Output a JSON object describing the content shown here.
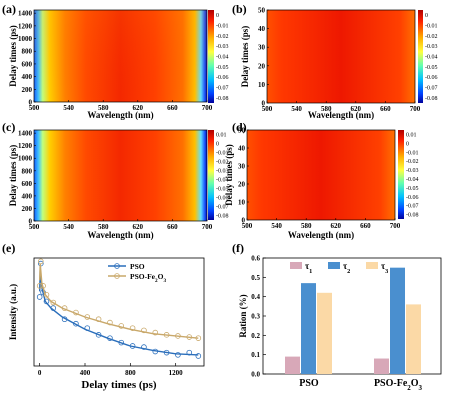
{
  "chart_data": [
    {
      "panel": "(a)",
      "type": "heatmap",
      "xlabel": "Wavelength (nm)",
      "ylabel": "Delay times (ps)",
      "xlim": [
        500,
        700
      ],
      "ylim": [
        0,
        1450
      ],
      "x_ticks": [
        "500",
        "540",
        "580",
        "620",
        "660",
        "700"
      ],
      "y_ticks": [
        "0",
        "200",
        "400",
        "600",
        "800",
        "1000",
        "1200",
        "1400"
      ],
      "colorbar_ticks": [
        "0",
        "-0.01",
        "-0.02",
        "-0.03",
        "-0.04",
        "-0.05",
        "-0.06",
        "-0.07",
        "-0.08"
      ],
      "colorbar_range": [
        -0.085,
        0.005
      ],
      "features": "bleach (blue) near 500 nm and 700 nm, positive (red) 540-690 nm"
    },
    {
      "panel": "(b)",
      "type": "heatmap",
      "xlabel": "Wavelength (nm)",
      "ylabel": "Delay times (ps)",
      "xlim": [
        500,
        700
      ],
      "ylim": [
        0,
        50
      ],
      "x_ticks": [
        "500",
        "540",
        "580",
        "620",
        "660",
        "700"
      ],
      "y_ticks": [
        "0",
        "10",
        "20",
        "30",
        "40",
        "50"
      ],
      "colorbar_ticks": [
        "0",
        "-0.01",
        "-0.02",
        "-0.03",
        "-0.04",
        "-0.05",
        "-0.06",
        "-0.07",
        "-0.08"
      ],
      "colorbar_range": [
        -0.085,
        0.005
      ]
    },
    {
      "panel": "(c)",
      "type": "heatmap",
      "xlabel": "Wavelength (nm)",
      "ylabel": "Delay times (ps)",
      "xlim": [
        500,
        700
      ],
      "ylim": [
        0,
        1450
      ],
      "x_ticks": [
        "500",
        "540",
        "580",
        "620",
        "660",
        "700"
      ],
      "y_ticks": [
        "0",
        "200",
        "400",
        "600",
        "800",
        "1000",
        "1200",
        "1400"
      ],
      "colorbar_ticks": [
        "0.01",
        "0",
        "-0.01",
        "-0.02",
        "-0.03",
        "-0.04",
        "-0.05",
        "-0.06",
        "-0.07",
        "-0.08"
      ],
      "colorbar_range": [
        -0.085,
        0.015
      ],
      "features": "bleach (blue) near 500 nm and 700 nm, positive (red) 540-690 nm"
    },
    {
      "panel": "(d)",
      "type": "heatmap",
      "xlabel": "Wavelength (nm)",
      "ylabel": "Delay times (ps)",
      "xlim": [
        500,
        700
      ],
      "ylim": [
        0,
        50
      ],
      "x_ticks": [
        "500",
        "540",
        "580",
        "620",
        "660",
        "700"
      ],
      "y_ticks": [
        "0",
        "10",
        "20",
        "30",
        "40",
        "50"
      ],
      "colorbar_ticks": [
        "0.01",
        "0",
        "-0.01",
        "-0.02",
        "-0.03",
        "-0.04",
        "-0.05",
        "-0.06",
        "-0.07",
        "-0.08"
      ],
      "colorbar_range": [
        -0.085,
        0.015
      ]
    },
    {
      "panel": "(e)",
      "type": "scatter",
      "xlabel": "Delay times (ps)",
      "ylabel": "Intensity (a.u.)",
      "xlim": [
        -50,
        1450
      ],
      "x_ticks": [
        "0",
        "400",
        "800",
        "1200"
      ],
      "series": [
        {
          "name": "PSO",
          "color": "#2a6ebb",
          "fit": [
            [
              0,
              0.75
            ],
            [
              5,
              0.95
            ],
            [
              20,
              0.78
            ],
            [
              50,
              0.66
            ],
            [
              100,
              0.6
            ],
            [
              200,
              0.52
            ],
            [
              400,
              0.41
            ],
            [
              600,
              0.33
            ],
            [
              800,
              0.26
            ],
            [
              1000,
              0.22
            ],
            [
              1200,
              0.19
            ],
            [
              1400,
              0.18
            ]
          ],
          "points": [
            [
              0,
              0.7
            ],
            [
              10,
              1.0
            ],
            [
              30,
              0.74
            ],
            [
              60,
              0.66
            ],
            [
              120,
              0.6
            ],
            [
              220,
              0.5
            ],
            [
              320,
              0.46
            ],
            [
              420,
              0.42
            ],
            [
              520,
              0.36
            ],
            [
              620,
              0.33
            ],
            [
              720,
              0.29
            ],
            [
              820,
              0.26
            ],
            [
              920,
              0.25
            ],
            [
              1020,
              0.21
            ],
            [
              1120,
              0.2
            ],
            [
              1220,
              0.18
            ],
            [
              1320,
              0.2
            ],
            [
              1400,
              0.17
            ]
          ]
        },
        {
          "name": "PSO-Fe2O3",
          "color": "#c9a86a",
          "fit": [
            [
              0,
              0.85
            ],
            [
              5,
              1.0
            ],
            [
              20,
              0.82
            ],
            [
              50,
              0.72
            ],
            [
              100,
              0.66
            ],
            [
              200,
              0.6
            ],
            [
              400,
              0.52
            ],
            [
              600,
              0.46
            ],
            [
              800,
              0.41
            ],
            [
              1000,
              0.37
            ],
            [
              1200,
              0.35
            ],
            [
              1400,
              0.33
            ]
          ],
          "points": [
            [
              0,
              0.8
            ],
            [
              10,
              1.02
            ],
            [
              30,
              0.8
            ],
            [
              60,
              0.72
            ],
            [
              120,
              0.65
            ],
            [
              220,
              0.6
            ],
            [
              320,
              0.56
            ],
            [
              420,
              0.52
            ],
            [
              520,
              0.5
            ],
            [
              620,
              0.47
            ],
            [
              720,
              0.44
            ],
            [
              820,
              0.42
            ],
            [
              920,
              0.4
            ],
            [
              1020,
              0.38
            ],
            [
              1120,
              0.36
            ],
            [
              1220,
              0.35
            ],
            [
              1320,
              0.34
            ],
            [
              1400,
              0.33
            ]
          ]
        }
      ],
      "legend": {
        "position": "top-right",
        "entries": [
          "PSO",
          "PSO-Fe"
        ]
      },
      "legend_subscript": "2",
      "legend_suffix": "O",
      "legend_suffix_subscript": "3"
    },
    {
      "panel": "(f)",
      "type": "bar",
      "xlabel": "",
      "ylabel": "Ration (%)",
      "ylim": [
        0.0,
        0.6
      ],
      "y_ticks": [
        "0.0",
        "0.1",
        "0.2",
        "0.3",
        "0.4",
        "0.5",
        "0.6"
      ],
      "categories": [
        "PSO",
        "PSO-Fe2O3"
      ],
      "category_label_parts": [
        {
          "base": "PSO",
          "sub": "",
          "tail": "",
          "tailsub": ""
        },
        {
          "base": "PSO-Fe",
          "sub": "2",
          "tail": "O",
          "tailsub": "3"
        }
      ],
      "series": [
        {
          "name": "τ1",
          "symbol": "τ",
          "sub": "1",
          "color": "#d8a8b8",
          "values": [
            0.09,
            0.08
          ]
        },
        {
          "name": "τ2",
          "symbol": "τ",
          "sub": "2",
          "color": "#4a8fcf",
          "values": [
            0.47,
            0.55
          ]
        },
        {
          "name": "τ3",
          "symbol": "τ",
          "sub": "3",
          "color": "#fbd9a6",
          "values": [
            0.42,
            0.36
          ]
        }
      ],
      "legend": {
        "position": "top-center"
      }
    }
  ],
  "panel_labels": [
    "(a)",
    "(b)",
    "(c)",
    "(d)",
    "(e)",
    "(f)"
  ]
}
